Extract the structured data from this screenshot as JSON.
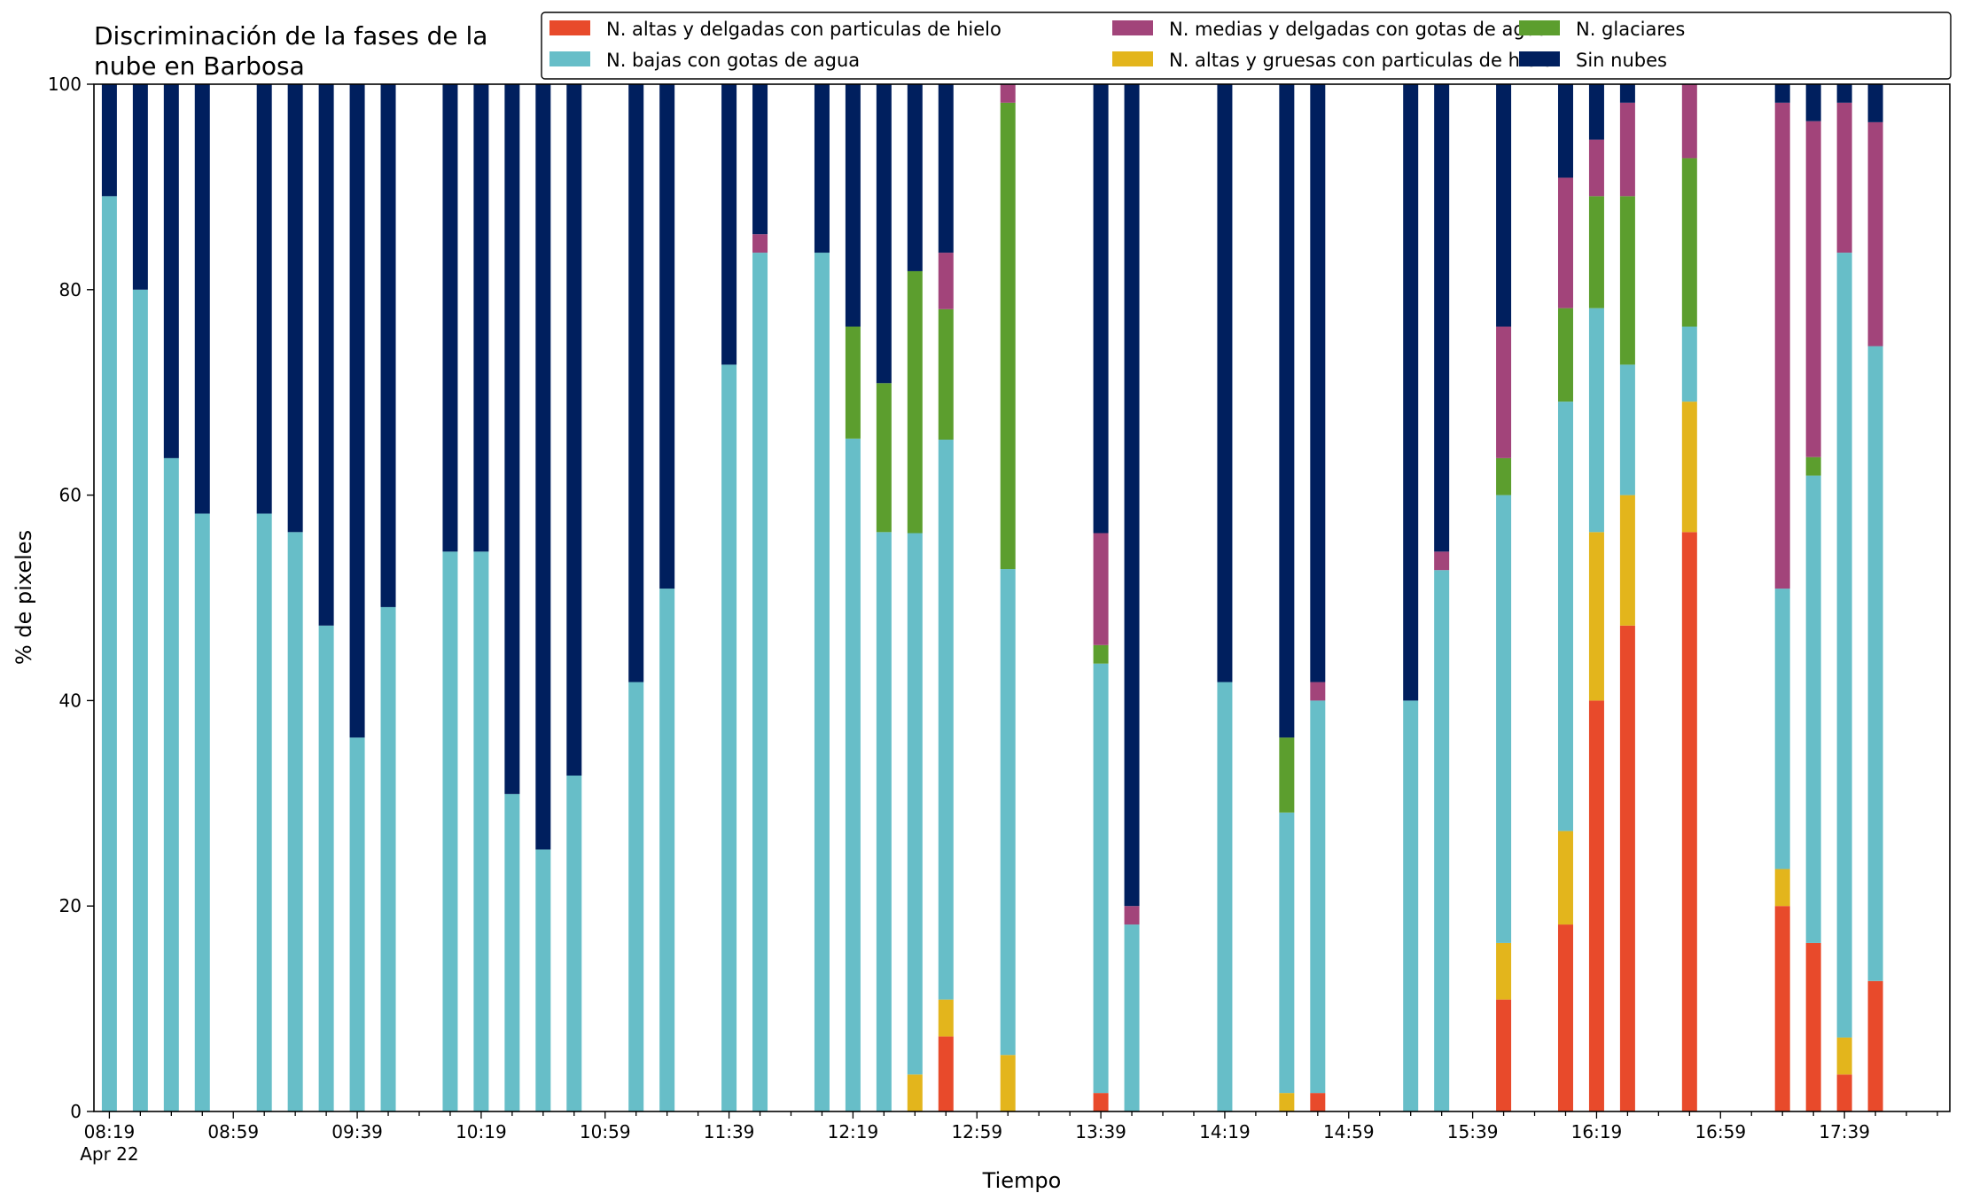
{
  "chart_data": {
    "type": "bar",
    "stacked": true,
    "title_lines": [
      "Discriminación de la fases de la",
      "nube en Barbosa"
    ],
    "xlabel": "Tiempo",
    "ylabel": "% de pixeles",
    "ylim": [
      0,
      100
    ],
    "yticks": [
      0,
      20,
      40,
      60,
      80,
      100
    ],
    "grid": false,
    "legend_position": "top-right",
    "x_time_range": [
      "08:19",
      "18:09"
    ],
    "x_tick_step_minutes": 10,
    "x_label_step_minutes": 40,
    "x_tick_labels": [
      "08:19",
      "08:59",
      "09:39",
      "10:19",
      "10:59",
      "11:39",
      "12:19",
      "12:59",
      "13:39",
      "14:19",
      "14:59",
      "15:39",
      "16:19",
      "16:59",
      "17:39"
    ],
    "x_first_label_date": "Apr 22",
    "series": [
      {
        "key": "altas_delgadas",
        "name": "N. altas y delgadas con particulas de hielo",
        "color": "#e84a2b"
      },
      {
        "key": "altas_gruesas",
        "name": "N. altas y gruesas con particulas de hielo",
        "color": "#e3b51c"
      },
      {
        "key": "bajas",
        "name": "N. bajas con gotas de agua",
        "color": "#67bec8"
      },
      {
        "key": "glaciares",
        "name": "N. glaciares",
        "color": "#5c9e2e"
      },
      {
        "key": "medias",
        "name": "N. medias y delgadas con gotas de agua",
        "color": "#a2447a"
      },
      {
        "key": "sin_nubes",
        "name": "Sin nubes",
        "color": "#001f5e"
      }
    ],
    "legend_order": [
      "altas_delgadas",
      "bajas",
      "medias",
      "altas_gruesas",
      "glaciares",
      "sin_nubes"
    ],
    "bars": [
      {
        "time": "08:19",
        "values": [
          0,
          0,
          89.1,
          0,
          0,
          10.9
        ]
      },
      {
        "time": "08:29",
        "values": [
          0,
          0,
          80,
          0,
          0,
          20
        ]
      },
      {
        "time": "08:39",
        "values": [
          0,
          0,
          63.6,
          0,
          0,
          36.4
        ]
      },
      {
        "time": "08:49",
        "values": [
          0,
          0,
          58.2,
          0,
          0,
          41.8
        ]
      },
      {
        "time": "09:09",
        "values": [
          0,
          0,
          58.2,
          0,
          0,
          41.8
        ]
      },
      {
        "time": "09:19",
        "values": [
          0,
          0,
          56.4,
          0,
          0,
          43.6
        ]
      },
      {
        "time": "09:29",
        "values": [
          0,
          0,
          47.3,
          0,
          0,
          52.7
        ]
      },
      {
        "time": "09:39",
        "values": [
          0,
          0,
          36.4,
          0,
          0,
          63.6
        ]
      },
      {
        "time": "09:49",
        "values": [
          0,
          0,
          49.1,
          0,
          0,
          50.9
        ]
      },
      {
        "time": "10:09",
        "values": [
          0,
          0,
          54.5,
          0,
          0,
          45.5
        ]
      },
      {
        "time": "10:19",
        "values": [
          0,
          0,
          54.5,
          0,
          0,
          45.5
        ]
      },
      {
        "time": "10:29",
        "values": [
          0,
          0,
          30.9,
          0,
          0,
          69.1
        ]
      },
      {
        "time": "10:39",
        "values": [
          0,
          0,
          25.5,
          0,
          0,
          74.5
        ]
      },
      {
        "time": "10:49",
        "values": [
          0,
          0,
          32.7,
          0,
          0,
          67.3
        ]
      },
      {
        "time": "11:09",
        "values": [
          0,
          0,
          41.8,
          0,
          0,
          58.2
        ]
      },
      {
        "time": "11:19",
        "values": [
          0,
          0,
          50.9,
          0,
          0,
          49.1
        ]
      },
      {
        "time": "11:39",
        "values": [
          0,
          0,
          72.7,
          0,
          0,
          27.3
        ]
      },
      {
        "time": "11:49",
        "values": [
          0,
          0,
          83.6,
          0,
          1.8,
          14.6
        ]
      },
      {
        "time": "12:09",
        "values": [
          0,
          0,
          83.6,
          0,
          0,
          16.4
        ]
      },
      {
        "time": "12:19",
        "values": [
          0,
          0,
          65.5,
          10.9,
          0,
          23.6
        ]
      },
      {
        "time": "12:29",
        "values": [
          0,
          0,
          56.4,
          14.5,
          0,
          29.1
        ]
      },
      {
        "time": "12:39",
        "values": [
          0,
          3.6,
          52.7,
          25.5,
          0,
          18.2
        ]
      },
      {
        "time": "12:49",
        "values": [
          7.3,
          3.6,
          54.5,
          12.7,
          5.5,
          16.4
        ]
      },
      {
        "time": "13:09",
        "values": [
          0,
          5.5,
          47.3,
          45.4,
          1.8,
          0
        ]
      },
      {
        "time": "13:39",
        "values": [
          1.8,
          0,
          41.8,
          1.8,
          10.9,
          43.7
        ]
      },
      {
        "time": "13:49",
        "values": [
          0,
          0,
          18.2,
          0,
          1.8,
          80
        ]
      },
      {
        "time": "14:19",
        "values": [
          0,
          0,
          41.8,
          0,
          0,
          58.2
        ]
      },
      {
        "time": "14:39",
        "values": [
          0,
          1.8,
          27.3,
          7.3,
          0,
          63.6
        ]
      },
      {
        "time": "14:49",
        "values": [
          1.8,
          0,
          38.2,
          0,
          1.8,
          58.2
        ]
      },
      {
        "time": "15:19",
        "values": [
          0,
          0,
          40,
          0,
          0,
          60
        ]
      },
      {
        "time": "15:29",
        "values": [
          0,
          0,
          52.7,
          0,
          1.8,
          45.5
        ]
      },
      {
        "time": "15:49",
        "values": [
          10.9,
          5.5,
          43.6,
          3.6,
          12.8,
          23.6
        ]
      },
      {
        "time": "16:09",
        "values": [
          18.2,
          9.1,
          41.8,
          9.1,
          12.7,
          9.1
        ]
      },
      {
        "time": "16:19",
        "values": [
          40,
          16.4,
          21.8,
          10.9,
          5.5,
          5.4
        ]
      },
      {
        "time": "16:29",
        "values": [
          47.3,
          12.7,
          12.7,
          16.4,
          9.1,
          1.8
        ]
      },
      {
        "time": "16:49",
        "values": [
          56.4,
          12.7,
          7.3,
          16.4,
          7.2,
          0
        ]
      },
      {
        "time": "17:19",
        "values": [
          20,
          3.6,
          27.3,
          0,
          47.3,
          1.8
        ]
      },
      {
        "time": "17:29",
        "values": [
          16.4,
          0,
          45.5,
          1.8,
          32.7,
          3.6
        ]
      },
      {
        "time": "17:39",
        "values": [
          3.6,
          3.6,
          76.4,
          0,
          14.6,
          1.8
        ]
      },
      {
        "time": "17:49",
        "values": [
          12.7,
          0,
          61.8,
          0,
          21.8,
          3.7
        ]
      }
    ]
  }
}
